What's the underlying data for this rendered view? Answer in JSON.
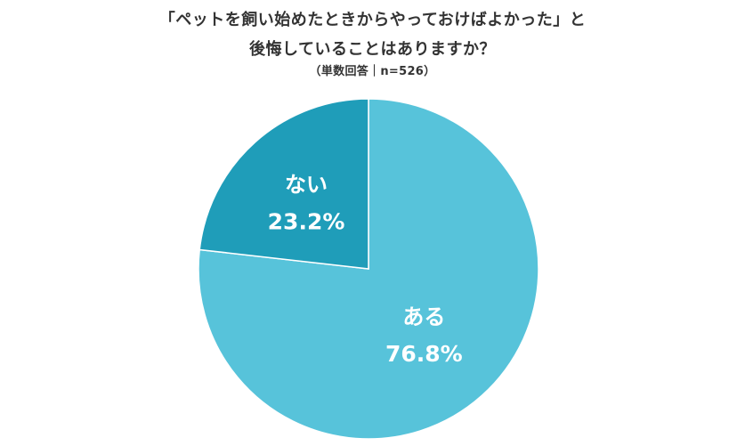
{
  "chart_data": {
    "type": "pie",
    "title_lines": [
      "「ペットを飼い始めたときからやっておけばよかった」と",
      "後悔していることはありますか？"
    ],
    "subtitle": "（単数回答｜n=526）",
    "slices": [
      {
        "label": "ある",
        "value": 76.8,
        "display": "76.8%",
        "color": "#57c3da"
      },
      {
        "label": "ない",
        "value": 23.2,
        "display": "23.2%",
        "color": "#1f9db9"
      }
    ],
    "start": "12 o'clock",
    "direction": "clockwise",
    "legend": "none"
  }
}
